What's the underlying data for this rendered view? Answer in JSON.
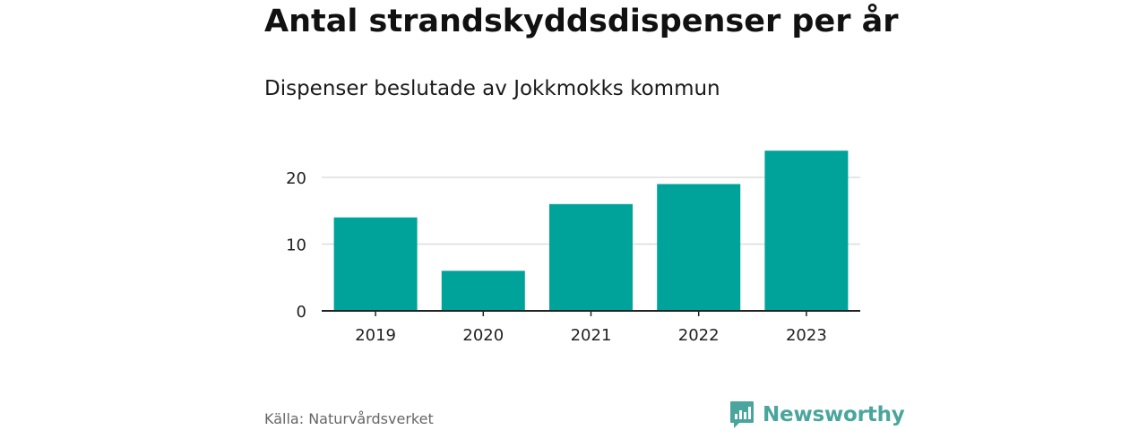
{
  "header": {
    "title": "Antal strandskyddsdispenser per år",
    "subtitle": "Dispenser beslutade av Jokkmokks kommun"
  },
  "footer": {
    "source": "Källa: Naturvårdsverket",
    "brand": "Newsworthy"
  },
  "colors": {
    "bar": "#00a39a",
    "grid": "#dddddd",
    "axis": "#222222",
    "brand": "#4aa69c"
  },
  "icons": {
    "brand": "bar-chart-speech-bubble-icon"
  },
  "chart_data": {
    "type": "bar",
    "title": "Antal strandskyddsdispenser per år",
    "subtitle": "Dispenser beslutade av Jokkmokks kommun",
    "xlabel": "",
    "ylabel": "",
    "categories": [
      "2019",
      "2020",
      "2021",
      "2022",
      "2023"
    ],
    "values": [
      14,
      6,
      16,
      19,
      24
    ],
    "ylim": [
      0,
      24
    ],
    "yticks": [
      0,
      10,
      20
    ],
    "grid": true,
    "legend": "none"
  }
}
